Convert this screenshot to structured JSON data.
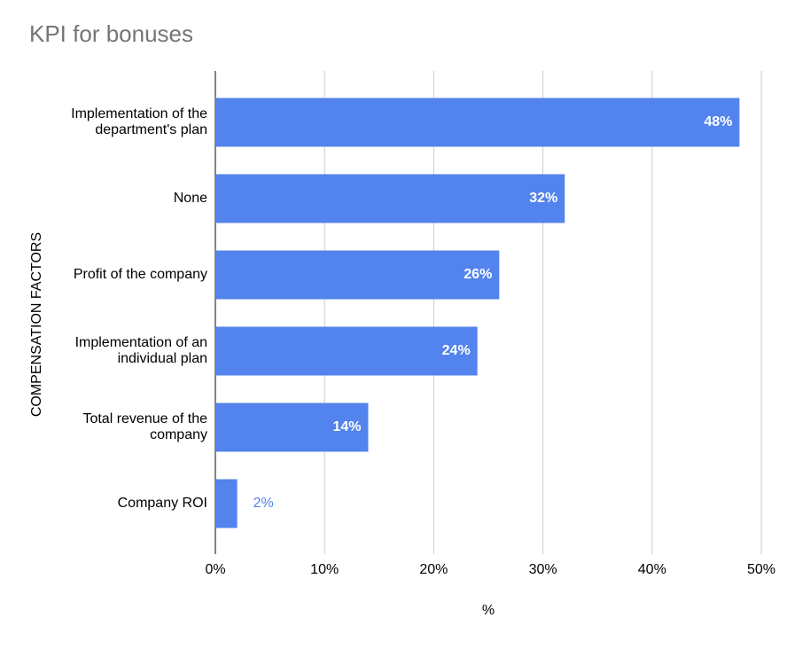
{
  "chart_data": {
    "type": "bar",
    "orientation": "horizontal",
    "title": "KPI for bonuses",
    "x_label": "%",
    "y_label": "COMPENSATION FACTORS",
    "categories": [
      "Implementation of the department's plan",
      "None",
      "Profit of the company",
      "Implementation of an individual plan",
      "Total revenue of the company",
      "Company ROI"
    ],
    "values": [
      48,
      32,
      26,
      24,
      14,
      2
    ],
    "value_labels": [
      "48%",
      "32%",
      "26%",
      "24%",
      "14%",
      "2%"
    ],
    "color": "#5383ec",
    "xlim": [
      0,
      50
    ],
    "xticks": [
      {
        "value": 0,
        "label": "0%"
      },
      {
        "value": 10,
        "label": "10%"
      },
      {
        "value": 20,
        "label": "20%"
      },
      {
        "value": 30,
        "label": "30%"
      },
      {
        "value": 40,
        "label": "40%"
      },
      {
        "value": 50,
        "label": "50%"
      }
    ],
    "grid": true
  }
}
